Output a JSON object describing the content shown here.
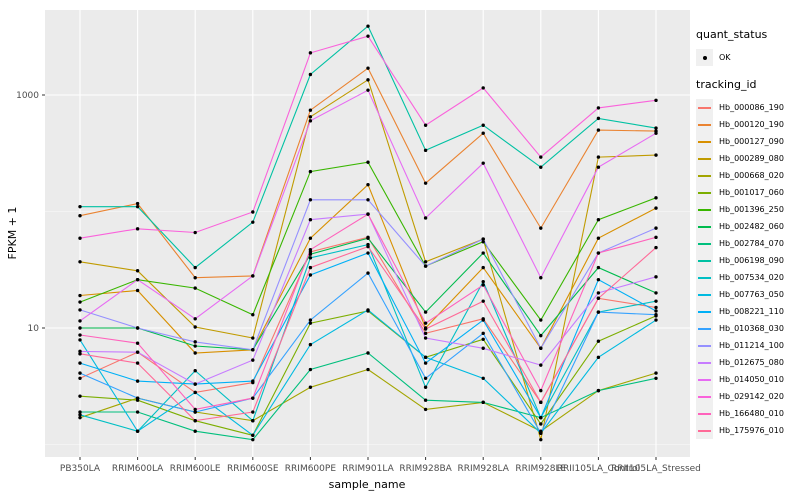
{
  "style": {
    "panel_bg": "#EBEBEB",
    "grid_major_color": "#FFFFFF",
    "grid_minor_color": "#FFFFFF",
    "tick_color": "#333333",
    "tick_label_color": "#4D4D4D",
    "legend_key_bg": "#F0F0F0",
    "point_color": "#000000"
  },
  "legend": {
    "quant_status": {
      "title": "quant_status",
      "items": [
        {
          "label": "OK",
          "symbol": "point-icon"
        }
      ]
    },
    "tracking_id_title": "tracking_id"
  },
  "chart_data": {
    "type": "line",
    "title": "",
    "xlabel": "sample_name",
    "ylabel": "FPKM + 1",
    "y_scale": "log10",
    "y_major_ticks": [
      {
        "label": "1000",
        "value": 1000
      },
      {
        "label": "10",
        "value": 10
      }
    ],
    "y_minor_gridlines": [
      100,
      1
    ],
    "ylim_approx": [
      0.78,
      5400
    ],
    "legend_position": "right",
    "grid": true,
    "point_marker": "black dot (quant_status OK)",
    "categories": [
      "PB350LA",
      "RRIM600LA",
      "RRIM600LE",
      "RRIM600SE",
      "RRIM600PE",
      "RRIM901LA",
      "RRIM928BA",
      "RRIM928LA",
      "RRIM928LE",
      "RRII105LA_Control",
      "RRII105LA_Stressed"
    ],
    "series": [
      {
        "name": "Hb_000086_190",
        "color": "#F8766D",
        "values": [
          3.7,
          6.2,
          2.8,
          3.4,
          45,
          60,
          9,
          12,
          2.3,
          18,
          15
        ]
      },
      {
        "name": "Hb_000120_190",
        "color": "#EA8331",
        "values": [
          92,
          117,
          27,
          28,
          740,
          1700,
          175,
          470,
          72,
          500,
          490
        ]
      },
      {
        "name": "Hb_000127_090",
        "color": "#D89000",
        "values": [
          19,
          21,
          6.1,
          6.5,
          59,
          170,
          10,
          33,
          6.7,
          59,
          107
        ]
      },
      {
        "name": "Hb_000289_080",
        "color": "#C09B00",
        "values": [
          37,
          31,
          10.2,
          8.2,
          650,
          1350,
          37,
          58,
          1.1,
          293,
          305
        ]
      },
      {
        "name": "Hb_000668_020",
        "color": "#A3A500",
        "values": [
          1.7,
          2.5,
          1.9,
          1.6,
          3.1,
          4.4,
          2.0,
          2.3,
          1.3,
          2.9,
          4.1
        ]
      },
      {
        "name": "Hb_001017_060",
        "color": "#7CAE00",
        "values": [
          2.6,
          2.4,
          1.6,
          1.2,
          11,
          14,
          5.6,
          8,
          1.5,
          7.7,
          12.7
        ]
      },
      {
        "name": "Hb_001396_250",
        "color": "#39B600",
        "values": [
          16.7,
          26,
          22,
          13,
          220,
          265,
          34,
          55,
          11.7,
          85,
          131
        ]
      },
      {
        "name": "Hb_002482_060",
        "color": "#00BB4E",
        "values": [
          10,
          10,
          7,
          6.5,
          43,
          59,
          13.7,
          44,
          8.6,
          33,
          20
        ]
      },
      {
        "name": "Hb_002784_070",
        "color": "#00BF7D",
        "values": [
          1.9,
          1.9,
          1.3,
          1.1,
          4.4,
          6.1,
          2.4,
          2.3,
          1.7,
          2.9,
          3.7
        ]
      },
      {
        "name": "Hb_006198_090",
        "color": "#00C1A3",
        "values": [
          110,
          110,
          33,
          81,
          1500,
          3900,
          335,
          550,
          240,
          630,
          520
        ]
      },
      {
        "name": "Hb_007534_020",
        "color": "#00BFC4",
        "values": [
          1.8,
          1.3,
          4.3,
          1.6,
          40,
          52,
          3.1,
          25,
          1.7,
          13.7,
          17
        ]
      },
      {
        "name": "Hb_007763_050",
        "color": "#00BAE0",
        "values": [
          7.9,
          1.3,
          2.8,
          1.2,
          7.2,
          14.3,
          5.6,
          3.7,
          1.25,
          5.6,
          11.7
        ]
      },
      {
        "name": "Hb_008221_110",
        "color": "#00B0F6",
        "values": [
          5.0,
          3.5,
          3.3,
          3.5,
          28.5,
          44,
          5.0,
          11.7,
          1.7,
          26,
          14
        ]
      },
      {
        "name": "Hb_010368_030",
        "color": "#35A2FF",
        "values": [
          4.1,
          2.5,
          1.9,
          2.5,
          11.7,
          29.6,
          3.7,
          9,
          1.25,
          13.7,
          13
        ]
      },
      {
        "name": "Hb_011214_100",
        "color": "#9590FF",
        "values": [
          14.3,
          10,
          7.6,
          6.5,
          126,
          126,
          34,
          58,
          6.7,
          44,
          72
        ]
      },
      {
        "name": "Hb_012675_080",
        "color": "#C77CFF",
        "values": [
          6.3,
          6.2,
          3.3,
          5.3,
          85,
          95,
          8.2,
          6.7,
          4.8,
          20,
          27.5
        ]
      },
      {
        "name": "Hb_014050_010",
        "color": "#E76BF3",
        "values": [
          11.5,
          26,
          12,
          28,
          600,
          1100,
          88,
          260,
          27,
          240,
          470
        ]
      },
      {
        "name": "Hb_029142_020",
        "color": "#FA62DB",
        "values": [
          59,
          71,
          66,
          99,
          2300,
          3200,
          550,
          1150,
          293,
          775,
          900
        ]
      },
      {
        "name": "Hb_166480_010",
        "color": "#FF62BC",
        "values": [
          8.7,
          7.4,
          2.0,
          2.5,
          47,
          95,
          11,
          23.4,
          2.9,
          44,
          60
        ]
      },
      {
        "name": "Hb_175976_010",
        "color": "#FF6A98",
        "values": [
          6.0,
          5.0,
          1.6,
          1.9,
          33,
          50,
          9.8,
          17,
          2.3,
          18,
          49
        ]
      }
    ]
  }
}
